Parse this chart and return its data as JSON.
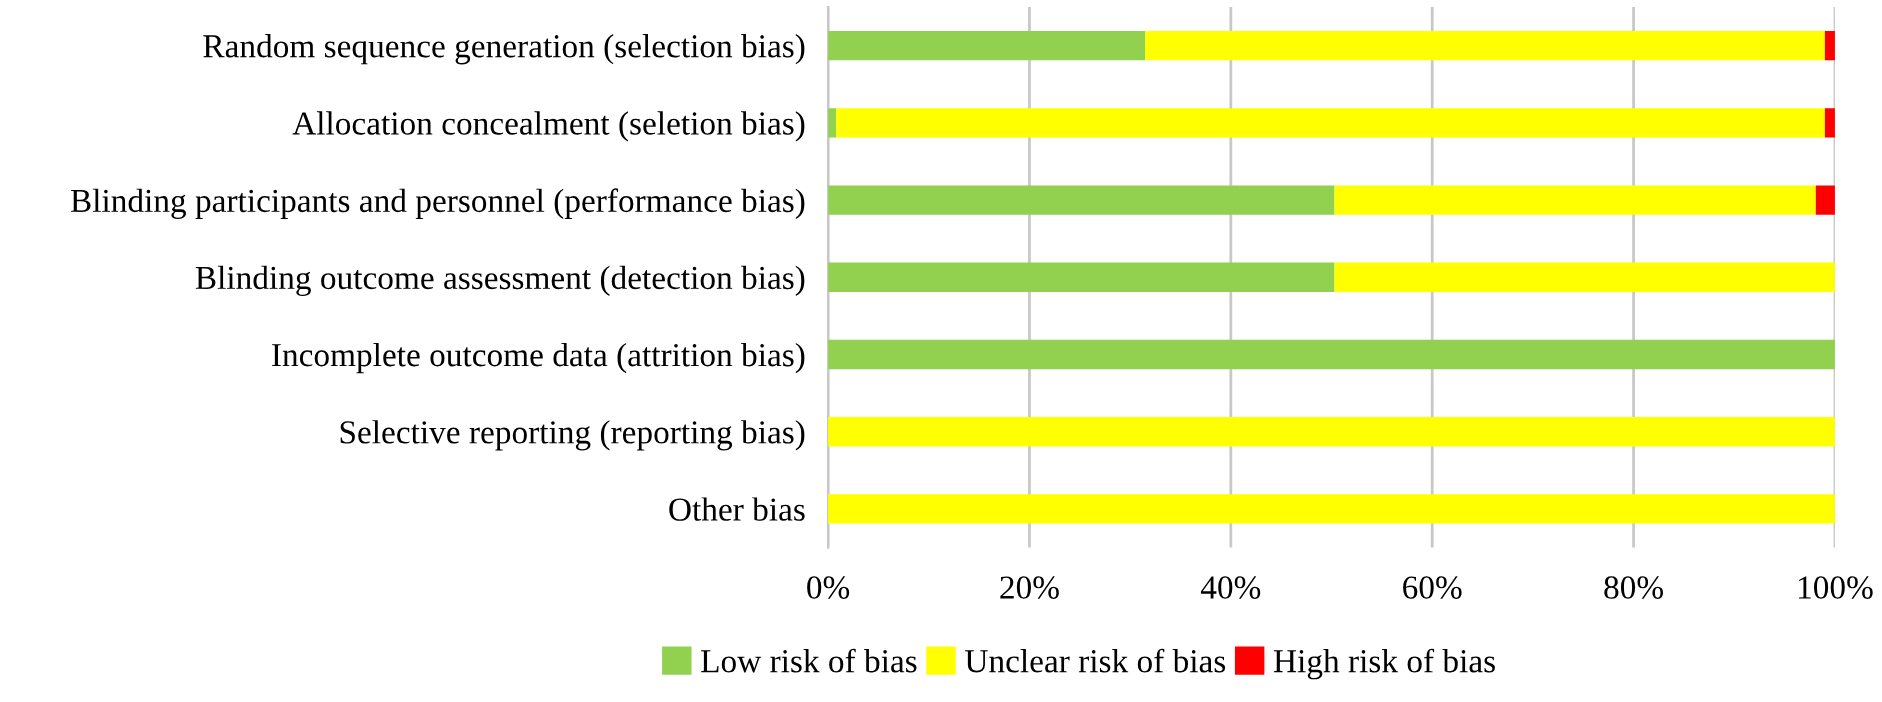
{
  "chart_data": {
    "type": "bar",
    "orientation": "horizontal",
    "stacked": true,
    "categories": [
      "Random sequence generation (selection bias)",
      "Allocation concealment (seletion bias)",
      "Blinding participants and personnel (performance bias)",
      "Blinding outcome assessment (detection bias)",
      "Incomplete outcome data (attrition bias)",
      "Selective reporting (reporting bias)",
      "Other bias"
    ],
    "series": [
      {
        "name": "Low risk of bias",
        "color": "#92d050",
        "values": [
          31.5,
          0.8,
          50.3,
          50.3,
          100,
          0,
          0
        ]
      },
      {
        "name": "Unclear risk of bias",
        "color": "#ffff00",
        "values": [
          67.5,
          98.2,
          47.8,
          49.7,
          0,
          100,
          100
        ]
      },
      {
        "name": "High risk of bias",
        "color": "#ff0000",
        "values": [
          1,
          1,
          1.9,
          0,
          0,
          0,
          0
        ]
      }
    ],
    "xlim": [
      0,
      100
    ],
    "xticks": [
      {
        "value": 0,
        "label": "0%"
      },
      {
        "value": 20,
        "label": "20%"
      },
      {
        "value": 40,
        "label": "40%"
      },
      {
        "value": 60,
        "label": "60%"
      },
      {
        "value": 80,
        "label": "80%"
      },
      {
        "value": 100,
        "label": "100%"
      }
    ],
    "grid": "x",
    "legend": "bottom"
  }
}
